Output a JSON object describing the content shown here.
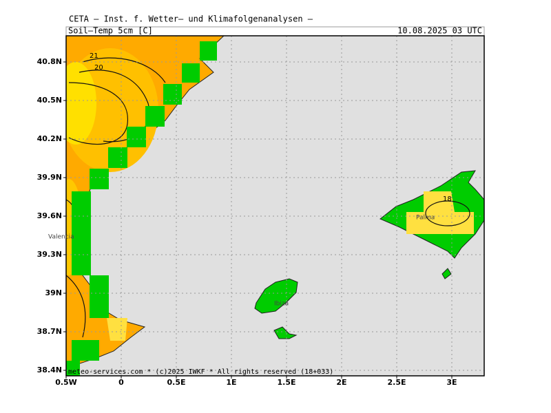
{
  "header": {
    "institute": "CETA — Inst. f. Wetter– und Klimafolgenanalysen —",
    "variable": "Soil–Temp 5cm [C]",
    "valid": "10.08.2025 03 UTC"
  },
  "map": {
    "lon_ticks": [
      {
        "value": -0.5,
        "label": "0.5W"
      },
      0,
      {
        "value": 0.5,
        "label": "0.5E"
      },
      {
        "value": 1,
        "label": "1E"
      },
      {
        "value": 1.5,
        "label": "1.5E"
      },
      {
        "value": 2,
        "label": "2E"
      },
      {
        "value": 2.5,
        "label": "2.5E"
      },
      {
        "value": 3,
        "label": "3E"
      }
    ],
    "lat_ticks": [
      {
        "value": 38.4,
        "label": "38.4N"
      },
      {
        "value": 38.7,
        "label": "38.7N"
      },
      {
        "value": 39,
        "label": "39N"
      },
      {
        "value": 39.3,
        "label": "39.3N"
      },
      {
        "value": 39.6,
        "label": "39.6N"
      },
      {
        "value": 39.9,
        "label": "39.9N"
      },
      {
        "value": 40.2,
        "label": "40.2N"
      },
      {
        "value": 40.5,
        "label": "40.5N"
      },
      {
        "value": 40.8,
        "label": "40.8N"
      }
    ],
    "places": [
      "Valencia",
      "Ibiza",
      "Palma"
    ],
    "contour_labels": [
      21,
      20,
      18
    ]
  },
  "footer": "meteo-services.com * (c)2025 IWKF * All rights reserved (18+033)"
}
